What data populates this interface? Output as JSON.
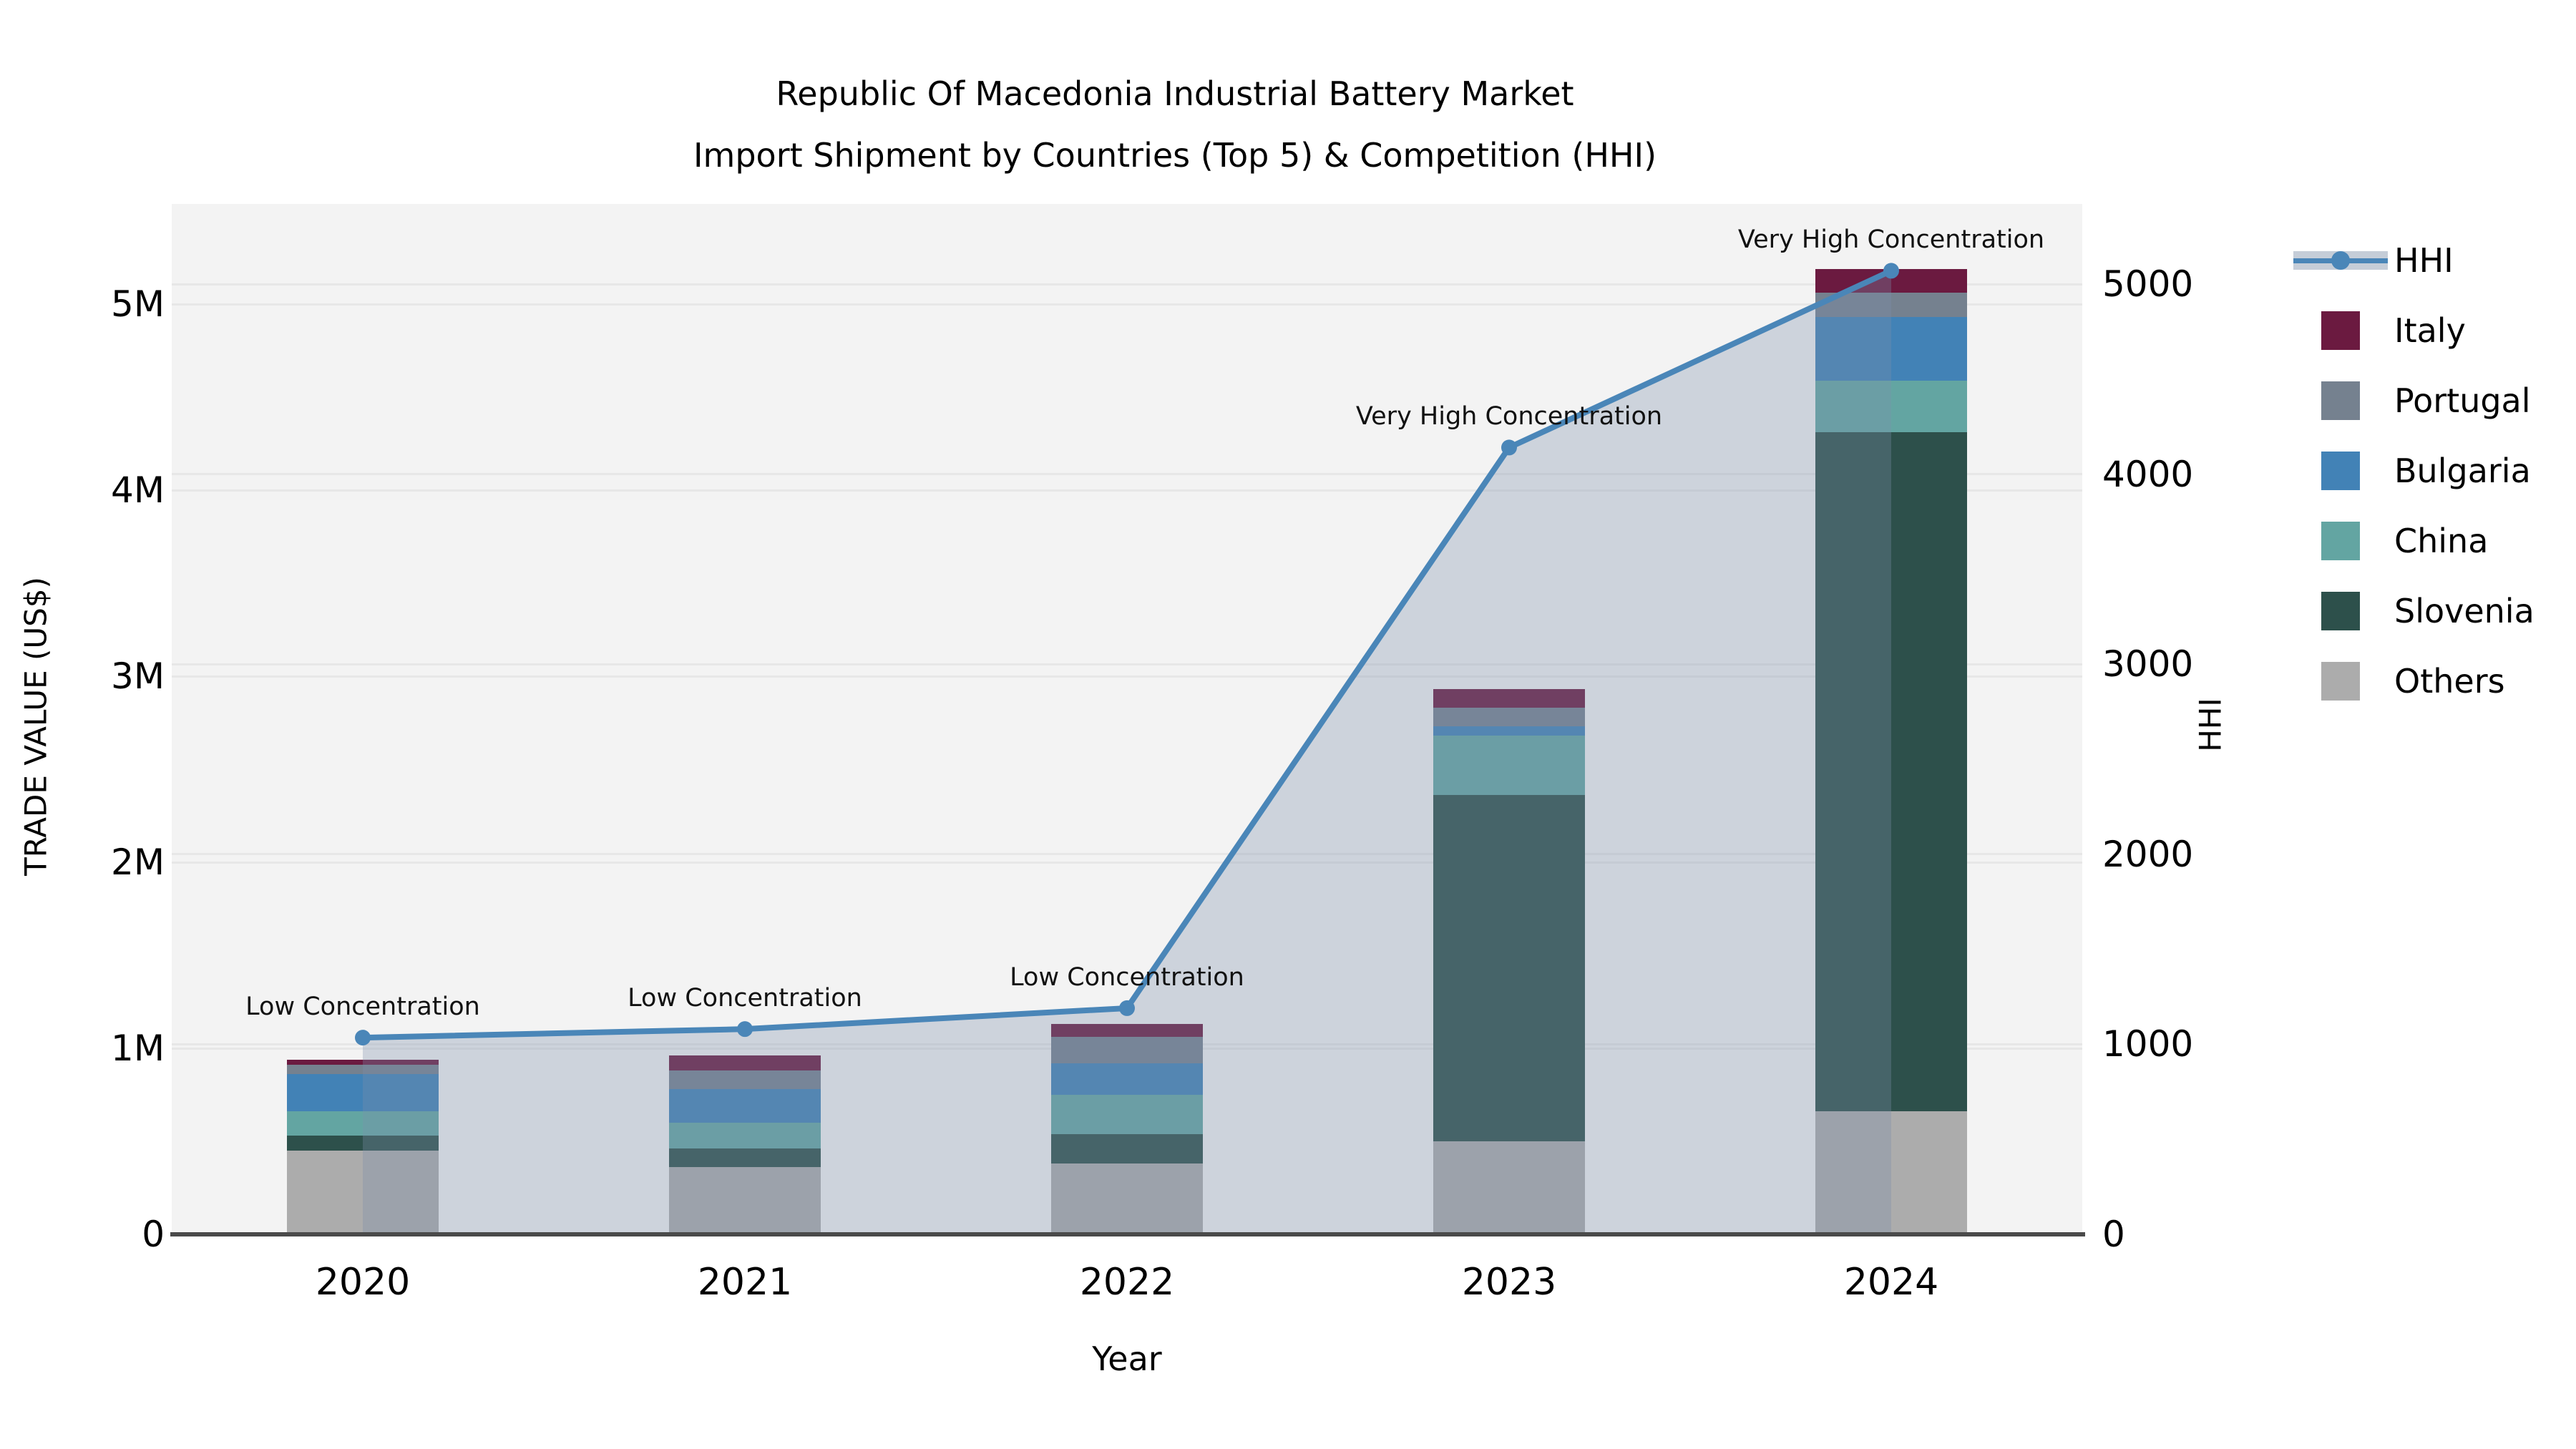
{
  "title": {
    "line1": "Republic Of Macedonia Industrial Battery Market",
    "line2": "Import Shipment by Countries (Top 5) & Competition (HHI)"
  },
  "axes": {
    "x": {
      "title": "Year",
      "categories": [
        "2020",
        "2021",
        "2022",
        "2023",
        "2024"
      ]
    },
    "y_left": {
      "title": "TRADE VALUE (US$)",
      "tick_labels": [
        "0",
        "1M",
        "2M",
        "3M",
        "4M",
        "5M"
      ],
      "tick_values": [
        0,
        1000000,
        2000000,
        3000000,
        4000000,
        5000000
      ]
    },
    "y_right": {
      "title": "HHI",
      "tick_labels": [
        "0",
        "1000",
        "2000",
        "3000",
        "4000",
        "5000"
      ],
      "tick_values": [
        0,
        1000,
        2000,
        3000,
        4000,
        5000
      ]
    }
  },
  "legend": {
    "items": [
      {
        "label": "HHI",
        "type": "line",
        "color": "#4a86b8"
      },
      {
        "label": "Italy",
        "type": "swatch",
        "color": "#6b1a40"
      },
      {
        "label": "Portugal",
        "type": "swatch",
        "color": "#75818f"
      },
      {
        "label": "Bulgaria",
        "type": "swatch",
        "color": "#4282b6"
      },
      {
        "label": "China",
        "type": "swatch",
        "color": "#63a5a2"
      },
      {
        "label": "Slovenia",
        "type": "swatch",
        "color": "#2d504b"
      },
      {
        "label": "Others",
        "type": "swatch",
        "color": "#acacac"
      }
    ]
  },
  "colors": {
    "plot_bg": "#f3f3f3",
    "grid": "#e7e7e7",
    "axis_line": "#4a4a4a",
    "hhi_line": "#4a86b8",
    "hhi_area_fill": "rgba(123,142,170,0.32)",
    "annotation_text": "#111111"
  },
  "chart_data": {
    "type": "combo_stacked_bar_line",
    "categories": [
      "2020",
      "2021",
      "2022",
      "2023",
      "2024"
    ],
    "stack_order": "bottom_to_top",
    "bar_series": [
      {
        "name": "Others",
        "color": "#acacac",
        "values": [
          450000,
          360000,
          380000,
          500000,
          660000
        ]
      },
      {
        "name": "Slovenia",
        "color": "#2d504b",
        "values": [
          80000,
          100000,
          160000,
          1860000,
          3650000
        ]
      },
      {
        "name": "China",
        "color": "#63a5a2",
        "values": [
          130000,
          140000,
          210000,
          320000,
          280000
        ]
      },
      {
        "name": "Bulgaria",
        "color": "#4282b6",
        "values": [
          200000,
          180000,
          170000,
          50000,
          340000
        ]
      },
      {
        "name": "Portugal",
        "color": "#75818f",
        "values": [
          50000,
          100000,
          140000,
          100000,
          130000
        ]
      },
      {
        "name": "Italy",
        "color": "#6b1a40",
        "values": [
          30000,
          80000,
          70000,
          100000,
          130000
        ]
      }
    ],
    "bar_totals": [
      940000,
      960000,
      1130000,
      2930000,
      5190000
    ],
    "line_series": {
      "name": "HHI",
      "axis": "right",
      "color": "#4a86b8",
      "values": [
        1035,
        1080,
        1190,
        4140,
        5070
      ]
    },
    "annotations": [
      "Low Concentration",
      "Low Concentration",
      "Low Concentration",
      "Very High Concentration",
      "Very High Concentration"
    ],
    "xlabel": "Year",
    "ylabel_left": "TRADE VALUE (US$)",
    "ylabel_right": "HHI",
    "ylim_left": [
      0,
      5540000
    ],
    "ylim_right": [
      0,
      5420
    ],
    "grid": true,
    "legend_position": "right"
  }
}
